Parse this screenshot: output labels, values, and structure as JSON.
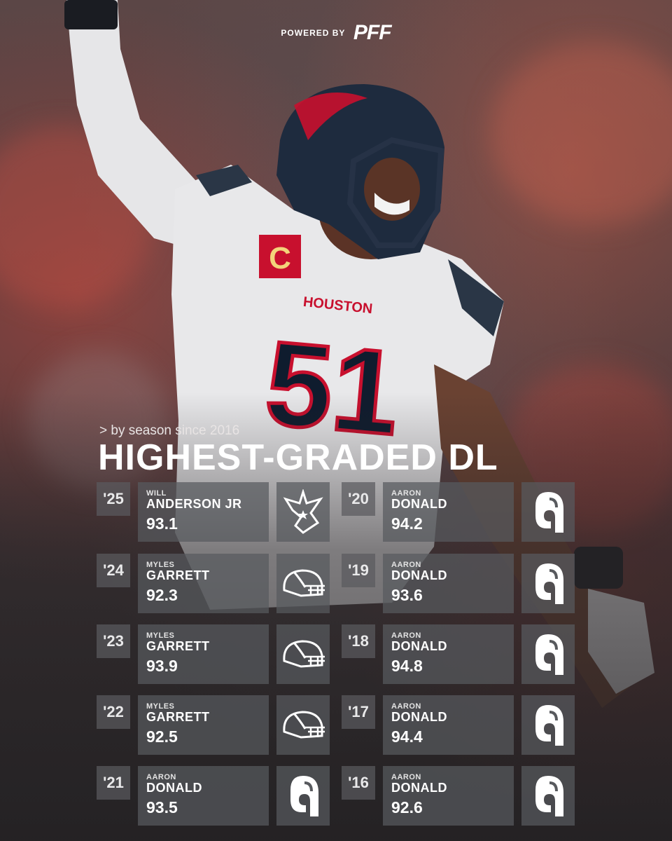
{
  "header": {
    "powered_by": "POWERED BY",
    "brand": "PFF"
  },
  "subtitle": "> by season since 2016",
  "title": "HIGHEST-GRADED DL",
  "jersey": {
    "wordmark": "HOUSTON",
    "number": "51",
    "captain_patch": "C"
  },
  "seasons": [
    {
      "year": "'25",
      "first": "WILL",
      "last": "ANDERSON JR",
      "grade": "93.1",
      "team_logo": "texans-logo-icon"
    },
    {
      "year": "'24",
      "first": "MYLES",
      "last": "GARRETT",
      "grade": "92.3",
      "team_logo": "browns-helmet-icon"
    },
    {
      "year": "'23",
      "first": "MYLES",
      "last": "GARRETT",
      "grade": "93.9",
      "team_logo": "browns-helmet-icon"
    },
    {
      "year": "'22",
      "first": "MYLES",
      "last": "GARRETT",
      "grade": "92.5",
      "team_logo": "browns-helmet-icon"
    },
    {
      "year": "'21",
      "first": "AARON",
      "last": "DONALD",
      "grade": "93.5",
      "team_logo": "rams-logo-icon"
    },
    {
      "year": "'20",
      "first": "AARON",
      "last": "DONALD",
      "grade": "94.2",
      "team_logo": "rams-logo-icon"
    },
    {
      "year": "'19",
      "first": "AARON",
      "last": "DONALD",
      "grade": "93.6",
      "team_logo": "rams-logo-icon"
    },
    {
      "year": "'18",
      "first": "AARON",
      "last": "DONALD",
      "grade": "94.8",
      "team_logo": "rams-logo-icon"
    },
    {
      "year": "'17",
      "first": "AARON",
      "last": "DONALD",
      "grade": "94.4",
      "team_logo": "rams-logo-icon"
    },
    {
      "year": "'16",
      "first": "AARON",
      "last": "DONALD",
      "grade": "92.6",
      "team_logo": "rams-logo-icon"
    }
  ],
  "colors": {
    "texans_navy": "#0b1f3a",
    "texans_red": "#c8102e",
    "panel": "#585a5e"
  }
}
